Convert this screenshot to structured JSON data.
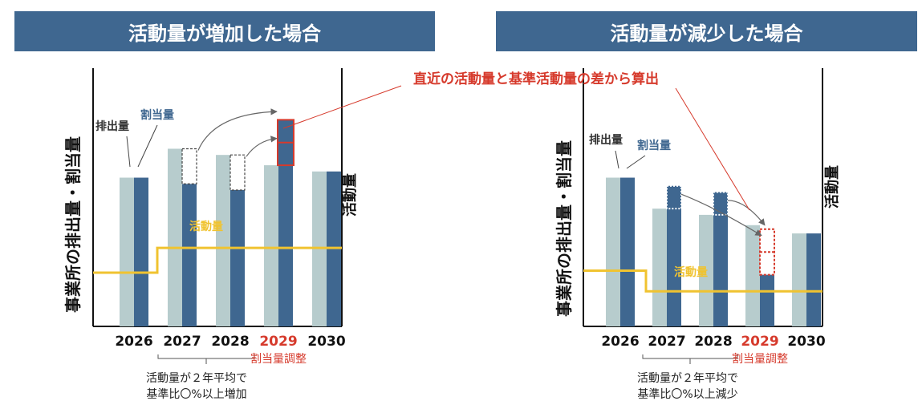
{
  "colors": {
    "banner": "#3f6790",
    "emission": "#b7cccd",
    "allocation": "#3f6790",
    "activity": "#f0c330",
    "highlight": "#d63a2c",
    "axis": "#111111"
  },
  "callout": "直近の活動量と基準活動量の差から算出",
  "chart_data": [
    {
      "type": "bar",
      "title": "活動量が増加した場合",
      "categories": [
        "2026",
        "2027",
        "2028",
        "2029",
        "2030"
      ],
      "highlight_category": "2029",
      "series": [
        {
          "name": "排出量",
          "values": [
            72,
            86,
            83,
            78,
            75
          ]
        },
        {
          "name": "割当量",
          "values": [
            72,
            69,
            66,
            100,
            75
          ]
        },
        {
          "name": "活動量",
          "type": "step-line",
          "values": [
            26,
            38,
            38,
            38,
            38
          ]
        }
      ],
      "dashed_deficit_boxes": [
        {
          "category": "2027",
          "from": 69,
          "to": 86
        },
        {
          "category": "2028",
          "from": 66,
          "to": 83
        }
      ],
      "ylim": [
        0,
        125
      ],
      "ylabel": "事業所の排出量・割当量",
      "y2label": "活動量",
      "labels": {
        "emission": "排出量",
        "allocation": "割当量",
        "activity": "活動量",
        "adjustment": "割当量調整"
      },
      "note": [
        "活動量が２年平均で",
        "基準比〇%以上増加"
      ]
    },
    {
      "type": "bar",
      "title": "活動量が減少した場合",
      "categories": [
        "2026",
        "2027",
        "2028",
        "2029",
        "2030"
      ],
      "highlight_category": "2029",
      "series": [
        {
          "name": "排出量",
          "values": [
            72,
            57,
            54,
            49,
            45
          ]
        },
        {
          "name": "割当量",
          "values": [
            72,
            68,
            65,
            25,
            45
          ]
        },
        {
          "name": "活動量",
          "type": "step-line",
          "values": [
            27,
            17,
            17,
            17,
            17
          ]
        }
      ],
      "surplus_boxes": [
        {
          "category": "2027",
          "from": 57,
          "to": 68
        },
        {
          "category": "2028",
          "from": 54,
          "to": 65
        }
      ],
      "ylim": [
        0,
        125
      ],
      "ylabel": "事業所の排出量・割当量",
      "y2label": "活動量",
      "labels": {
        "emission": "排出量",
        "allocation": "割当量",
        "activity": "活動量",
        "adjustment": "割当量調整"
      },
      "note": [
        "活動量が２年平均で",
        "基準比〇%以上減少"
      ]
    }
  ]
}
